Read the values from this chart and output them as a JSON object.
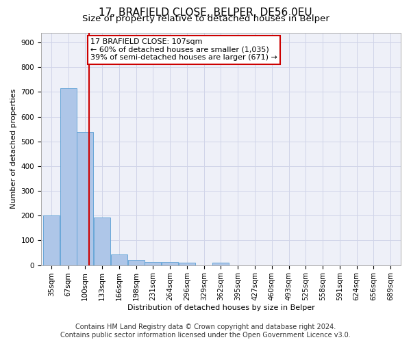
{
  "title": "17, BRAFIELD CLOSE, BELPER, DE56 0EU",
  "subtitle": "Size of property relative to detached houses in Belper",
  "xlabel": "Distribution of detached houses by size in Belper",
  "ylabel": "Number of detached properties",
  "footer_line1": "Contains HM Land Registry data © Crown copyright and database right 2024.",
  "footer_line2": "Contains public sector information licensed under the Open Government Licence v3.0.",
  "bar_labels": [
    "35sqm",
    "67sqm",
    "100sqm",
    "133sqm",
    "166sqm",
    "198sqm",
    "231sqm",
    "264sqm",
    "296sqm",
    "329sqm",
    "362sqm",
    "395sqm",
    "427sqm",
    "460sqm",
    "493sqm",
    "525sqm",
    "558sqm",
    "591sqm",
    "624sqm",
    "656sqm",
    "689sqm"
  ],
  "bar_values": [
    200,
    715,
    537,
    193,
    42,
    20,
    14,
    13,
    10,
    0,
    9,
    0,
    0,
    0,
    0,
    0,
    0,
    0,
    0,
    0,
    0
  ],
  "bar_color": "#aec6e8",
  "bar_edge_color": "#5a9fd4",
  "grid_color": "#d0d4e8",
  "background_color": "#eef0f8",
  "annotation_box_text": "17 BRAFIELD CLOSE: 107sqm\n← 60% of detached houses are smaller (1,035)\n39% of semi-detached houses are larger (671) →",
  "annotation_box_color": "#ffffff",
  "annotation_box_edge_color": "#cc0000",
  "property_line_x": 107,
  "property_line_color": "#cc0000",
  "ylim": [
    0,
    940
  ],
  "yticks": [
    0,
    100,
    200,
    300,
    400,
    500,
    600,
    700,
    800,
    900
  ],
  "title_fontsize": 11,
  "subtitle_fontsize": 9.5,
  "axis_label_fontsize": 8,
  "tick_fontsize": 7.5,
  "footer_fontsize": 7,
  "annot_fontsize": 8
}
